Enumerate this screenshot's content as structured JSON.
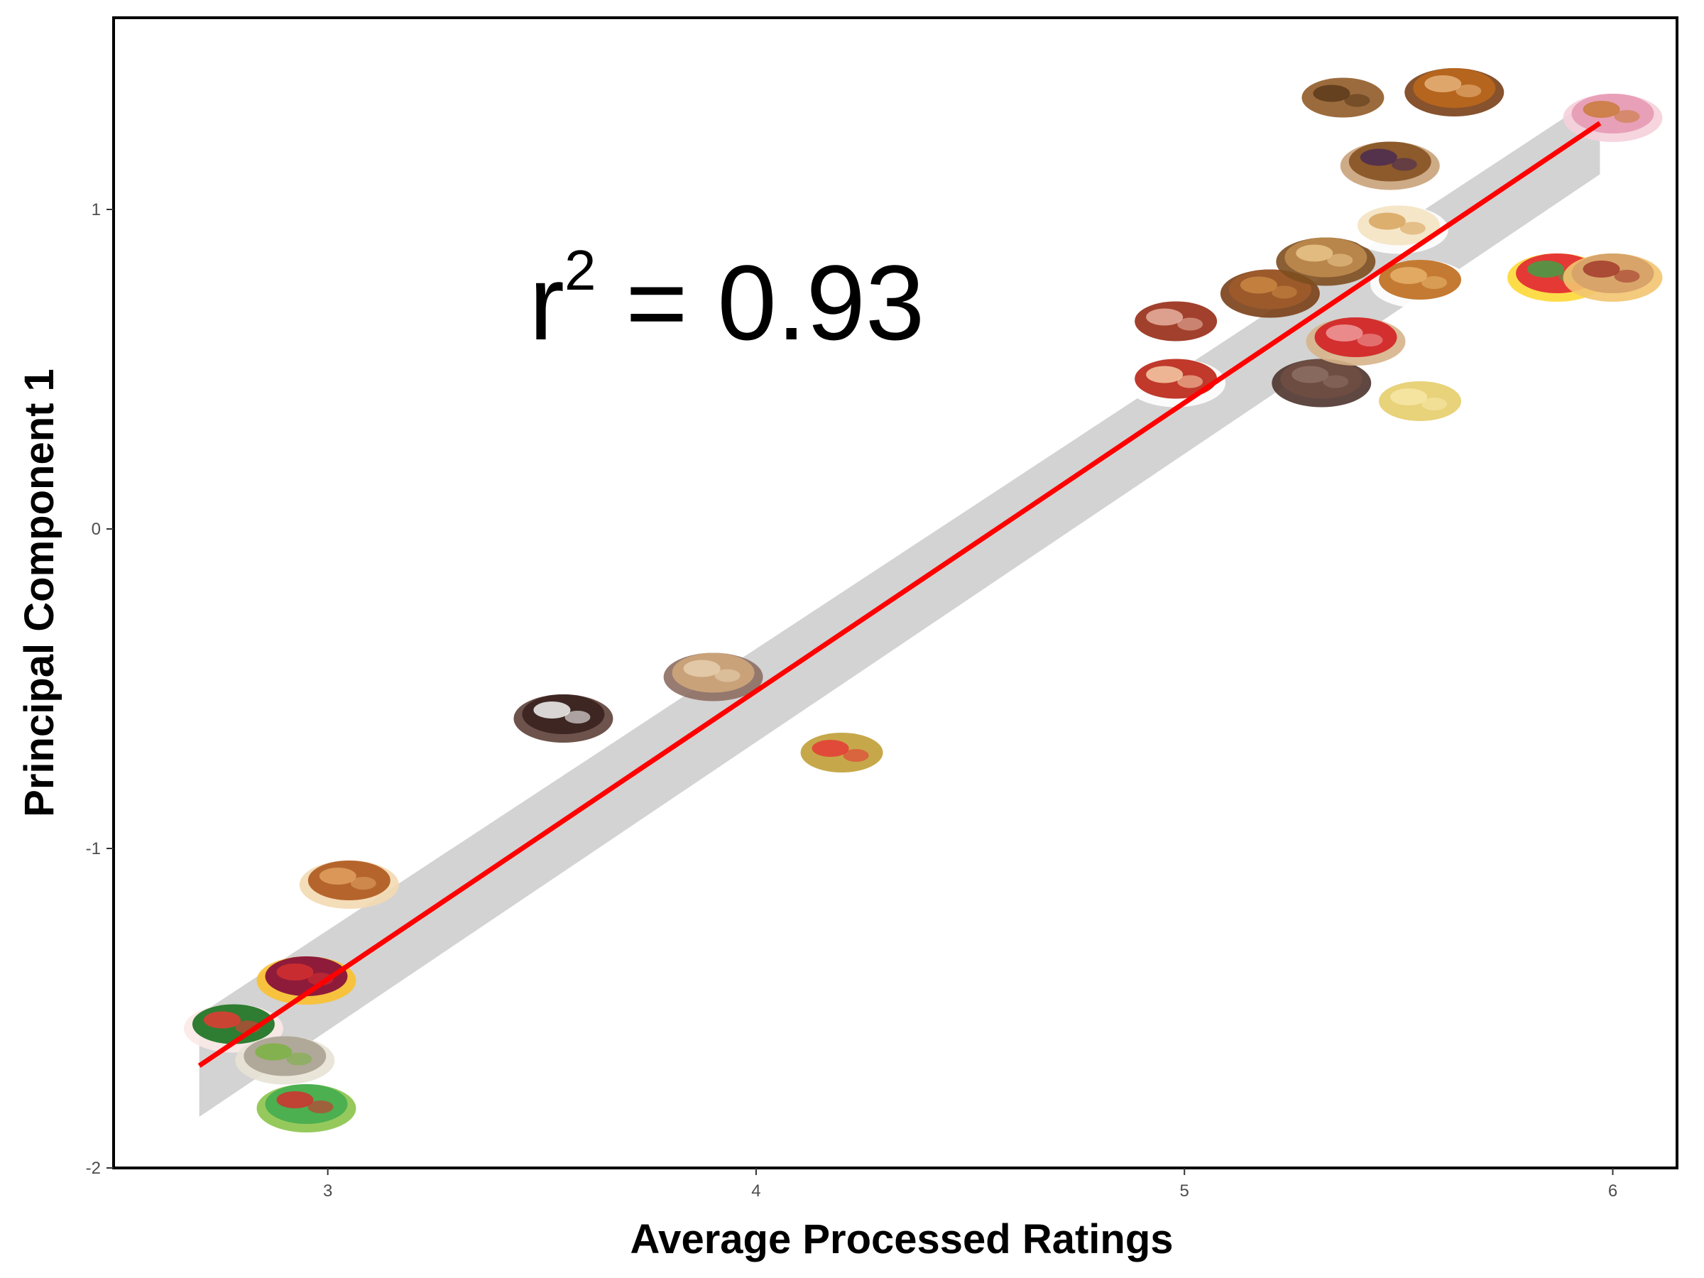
{
  "chart_data": {
    "type": "scatter",
    "title": "",
    "xlabel": "Average Processed Ratings",
    "ylabel": "Principal Component 1",
    "xlim": [
      2.5,
      6.15
    ],
    "ylim": [
      -2.0,
      1.6
    ],
    "x_ticks": [
      3,
      4,
      5,
      6
    ],
    "y_ticks": [
      -2,
      -1,
      0,
      1
    ],
    "x_tick_labels": [
      "3",
      "4",
      "5",
      "6"
    ],
    "y_tick_labels": [
      "-2",
      "-1",
      "0",
      "1"
    ],
    "grid": false,
    "legend": "none",
    "annotation": {
      "base": "r",
      "superscript": "2",
      "rest": " = 0.93"
    },
    "fit_line": {
      "x": [
        2.7,
        5.97
      ],
      "y": [
        -1.68,
        1.27
      ],
      "color": "#ff0000"
    },
    "confidence_band": {
      "x": [
        2.7,
        5.97
      ],
      "upper": [
        -1.52,
        1.36
      ],
      "lower": [
        -1.84,
        1.11
      ],
      "color": "#d3d3d3"
    },
    "points": [
      {
        "x": 2.78,
        "y": -1.55,
        "icon": "watermelon"
      },
      {
        "x": 2.95,
        "y": -1.4,
        "icon": "berries"
      },
      {
        "x": 3.05,
        "y": -1.1,
        "icon": "potatoes"
      },
      {
        "x": 2.9,
        "y": -1.65,
        "icon": "mushrooms"
      },
      {
        "x": 2.95,
        "y": -1.8,
        "icon": "broccoli-tomatoes"
      },
      {
        "x": 3.55,
        "y": -0.58,
        "icon": "peppercorns"
      },
      {
        "x": 3.9,
        "y": -0.45,
        "icon": "rice-bowl"
      },
      {
        "x": 4.2,
        "y": -0.7,
        "icon": "soup"
      },
      {
        "x": 4.98,
        "y": 0.65,
        "icon": "bacon"
      },
      {
        "x": 4.98,
        "y": 0.47,
        "icon": "pie"
      },
      {
        "x": 5.2,
        "y": 0.75,
        "icon": "fried-chicken"
      },
      {
        "x": 5.33,
        "y": 0.85,
        "icon": "grilled-sandwich"
      },
      {
        "x": 5.32,
        "y": 0.47,
        "icon": "sausages"
      },
      {
        "x": 5.4,
        "y": 0.6,
        "icon": "popsicle"
      },
      {
        "x": 5.55,
        "y": 0.78,
        "icon": "onion-rings"
      },
      {
        "x": 5.55,
        "y": 0.4,
        "icon": "mac-and-cheese"
      },
      {
        "x": 5.5,
        "y": 0.95,
        "icon": "ice-cream-cone"
      },
      {
        "x": 5.48,
        "y": 1.15,
        "icon": "muffin"
      },
      {
        "x": 5.37,
        "y": 1.35,
        "icon": "cookies"
      },
      {
        "x": 5.63,
        "y": 1.38,
        "icon": "cinnamon-rolls"
      },
      {
        "x": 5.87,
        "y": 0.8,
        "icon": "jelly-beans"
      },
      {
        "x": 6.0,
        "y": 0.8,
        "icon": "hot-dog"
      },
      {
        "x": 6.0,
        "y": 1.3,
        "icon": "donuts"
      }
    ]
  }
}
